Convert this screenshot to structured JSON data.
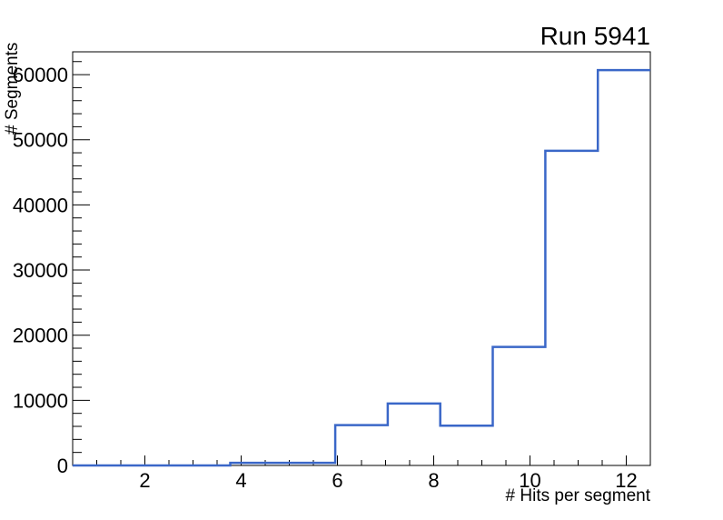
{
  "chart_data": {
    "type": "line",
    "subtype": "histogram-step",
    "title": "Run 5941",
    "xlabel": "# Hits per segment",
    "ylabel": "# Segments",
    "xlim": [
      0.5,
      12.5
    ],
    "ylim": [
      0,
      63500
    ],
    "x_major_ticks": [
      2,
      4,
      6,
      8,
      10,
      12
    ],
    "x_minor_tick_step": 0.5,
    "y_major_ticks": [
      0,
      10000,
      20000,
      30000,
      40000,
      50000,
      60000
    ],
    "y_minor_tick_step": 2000,
    "grid": false,
    "legend": false,
    "bins": {
      "edges": [
        0.5,
        1.5909,
        2.6818,
        3.7727,
        4.8636,
        5.9545,
        7.0455,
        8.1364,
        9.2273,
        10.3182,
        11.4091,
        12.5
      ],
      "counts": [
        0,
        0,
        0,
        400,
        400,
        6200,
        9500,
        6100,
        18200,
        48300,
        60700
      ]
    },
    "colors": {
      "line": "#3a67c8",
      "frame": "#000000",
      "background": "#ffffff",
      "text": "#000000"
    }
  }
}
